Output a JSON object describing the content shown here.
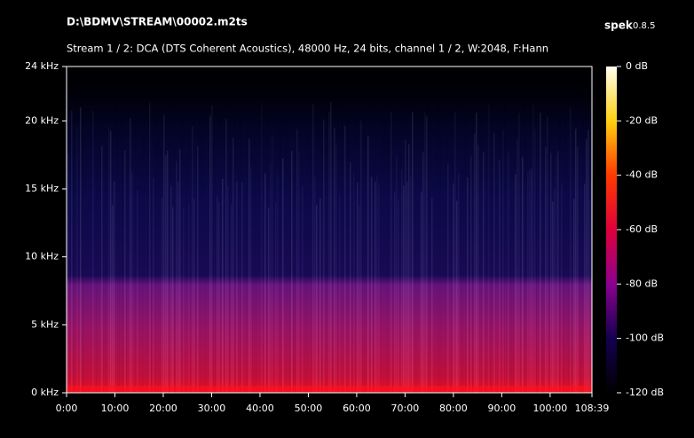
{
  "chart_data": {
    "type": "spectrogram",
    "title": "D:\\BDMV\\STREAM\\00002.m2ts",
    "subtitle": "Stream 1 / 2: DCA (DTS Coherent Acoustics), 48000 Hz, 24 bits, channel 1 / 2, W:2048, F:Hann",
    "app_name": "spek",
    "app_version": "0.8.5",
    "xlim": [
      0,
      108.65
    ],
    "xticks": [
      {
        "value": 0,
        "label": "0:00"
      },
      {
        "value": 10,
        "label": "10:00"
      },
      {
        "value": 20,
        "label": "20:00"
      },
      {
        "value": 30,
        "label": "30:00"
      },
      {
        "value": 40,
        "label": "40:00"
      },
      {
        "value": 50,
        "label": "50:00"
      },
      {
        "value": 60,
        "label": "60:00"
      },
      {
        "value": 70,
        "label": "70:00"
      },
      {
        "value": 80,
        "label": "80:00"
      },
      {
        "value": 90,
        "label": "90:00"
      },
      {
        "value": 100,
        "label": "100:00"
      },
      {
        "value": 108.65,
        "label": "108:39"
      }
    ],
    "ylim": [
      0,
      24
    ],
    "yticks": [
      {
        "value": 0,
        "label": "0 kHz"
      },
      {
        "value": 5,
        "label": "5 kHz"
      },
      {
        "value": 10,
        "label": "10 kHz"
      },
      {
        "value": 15,
        "label": "15 kHz"
      },
      {
        "value": 20,
        "label": "20 kHz"
      },
      {
        "value": 24,
        "label": "24 kHz"
      }
    ],
    "clim": [
      -120,
      0
    ],
    "cticks": [
      {
        "value": 0,
        "label": "0 dB"
      },
      {
        "value": -20,
        "label": "-20 dB"
      },
      {
        "value": -40,
        "label": "-40 dB"
      },
      {
        "value": -60,
        "label": "-60 dB"
      },
      {
        "value": -80,
        "label": "-80 dB"
      },
      {
        "value": -100,
        "label": "-100 dB"
      },
      {
        "value": -120,
        "label": "-120 dB"
      }
    ]
  }
}
